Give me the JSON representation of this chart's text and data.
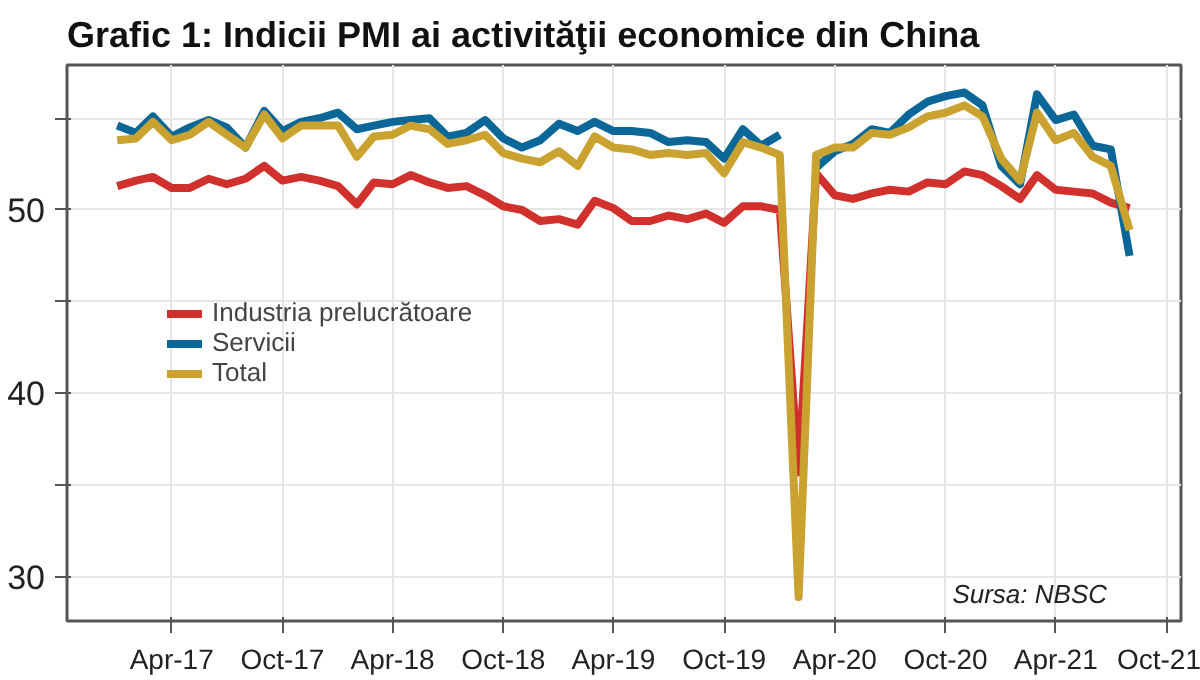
{
  "chart_data": {
    "type": "line",
    "title": "Grafic 1: Indicii PMI ai activităţii economice din China",
    "x": [
      "2017-01",
      "2017-02",
      "2017-03",
      "2017-04",
      "2017-05",
      "2017-06",
      "2017-07",
      "2017-08",
      "2017-09",
      "2017-10",
      "2017-11",
      "2017-12",
      "2018-01",
      "2018-02",
      "2018-03",
      "2018-04",
      "2018-05",
      "2018-06",
      "2018-07",
      "2018-08",
      "2018-09",
      "2018-10",
      "2018-11",
      "2018-12",
      "2019-01",
      "2019-02",
      "2019-03",
      "2019-04",
      "2019-05",
      "2019-06",
      "2019-07",
      "2019-08",
      "2019-09",
      "2019-10",
      "2019-11",
      "2019-12",
      "2020-01",
      "2020-02",
      "2020-03",
      "2020-04",
      "2020-05",
      "2020-06",
      "2020-07",
      "2020-08",
      "2020-09",
      "2020-10",
      "2020-11",
      "2020-12",
      "2021-01",
      "2021-02",
      "2021-03",
      "2021-04",
      "2021-05",
      "2021-06",
      "2021-07",
      "2021-08"
    ],
    "series": [
      {
        "name": "Industria prelucrătoare",
        "color": "#d0312d",
        "values": [
          51.3,
          51.6,
          51.8,
          51.2,
          51.2,
          51.7,
          51.4,
          51.7,
          52.4,
          51.6,
          51.8,
          51.6,
          51.3,
          50.3,
          51.5,
          51.4,
          51.9,
          51.5,
          51.2,
          51.3,
          50.8,
          50.2,
          50.0,
          49.4,
          49.5,
          49.2,
          50.5,
          50.1,
          49.4,
          49.4,
          49.7,
          49.5,
          49.8,
          49.3,
          50.2,
          50.2,
          50.0,
          35.7,
          52.0,
          50.8,
          50.6,
          50.9,
          51.1,
          51.0,
          51.5,
          51.4,
          52.1,
          51.9,
          51.3,
          50.6,
          51.9,
          51.1,
          51.0,
          50.9,
          50.4,
          50.1
        ]
      },
      {
        "name": "Servicii",
        "color": "#0b6797",
        "values": [
          54.6,
          54.2,
          55.1,
          54.0,
          54.5,
          54.9,
          54.5,
          53.4,
          55.4,
          54.3,
          54.8,
          55.0,
          55.3,
          54.4,
          54.6,
          54.8,
          54.9,
          55.0,
          54.0,
          54.2,
          54.9,
          53.9,
          53.4,
          53.8,
          54.7,
          54.3,
          54.8,
          54.3,
          54.3,
          54.2,
          53.7,
          53.8,
          53.7,
          52.8,
          54.4,
          53.5,
          54.1,
          null,
          52.3,
          53.2,
          53.6,
          54.4,
          54.2,
          55.2,
          55.9,
          56.2,
          56.4,
          55.7,
          52.4,
          51.4,
          56.3,
          54.9,
          55.2,
          53.5,
          53.3,
          47.5
        ]
      },
      {
        "name": "Total",
        "color": "#c9a22f",
        "values": [
          53.8,
          53.9,
          54.8,
          53.8,
          54.1,
          54.8,
          54.1,
          53.4,
          55.2,
          53.9,
          54.6,
          54.6,
          54.6,
          52.9,
          54.0,
          54.1,
          54.6,
          54.4,
          53.6,
          53.8,
          54.1,
          53.1,
          52.8,
          52.6,
          53.2,
          52.4,
          54.0,
          53.4,
          53.3,
          53.0,
          53.1,
          53.0,
          53.1,
          52.0,
          53.7,
          53.4,
          53.0,
          28.9,
          53.0,
          53.4,
          53.4,
          54.2,
          54.1,
          54.5,
          55.1,
          55.3,
          55.7,
          55.1,
          52.8,
          51.6,
          55.3,
          53.8,
          54.2,
          52.9,
          52.4,
          48.9
        ]
      }
    ],
    "xlim": [
      "2016-10-10",
      "2021-10-25"
    ],
    "xticks": [
      {
        "value": "2017-04",
        "label": "Apr-17"
      },
      {
        "value": "2017-10",
        "label": "Oct-17"
      },
      {
        "value": "2018-04",
        "label": "Apr-18"
      },
      {
        "value": "2018-10",
        "label": "Oct-18"
      },
      {
        "value": "2019-04",
        "label": "Apr-19"
      },
      {
        "value": "2019-10",
        "label": "Oct-19"
      },
      {
        "value": "2020-04",
        "label": "Apr-20"
      },
      {
        "value": "2020-10",
        "label": "Oct-20"
      },
      {
        "value": "2021-04",
        "label": "Apr-21"
      },
      {
        "value": "2021-10",
        "label": "Oct-21"
      }
    ],
    "ylim": [
      27.6,
      57.9
    ],
    "yticks": [
      30,
      {
        "value": 35,
        "label": null
      },
      40,
      {
        "value": 45,
        "label": null
      },
      50,
      {
        "value": 55,
        "label": null
      }
    ],
    "grid": true,
    "legend": "left",
    "line_style": "solid",
    "annotations": [
      "Sursa: NBSC"
    ]
  }
}
